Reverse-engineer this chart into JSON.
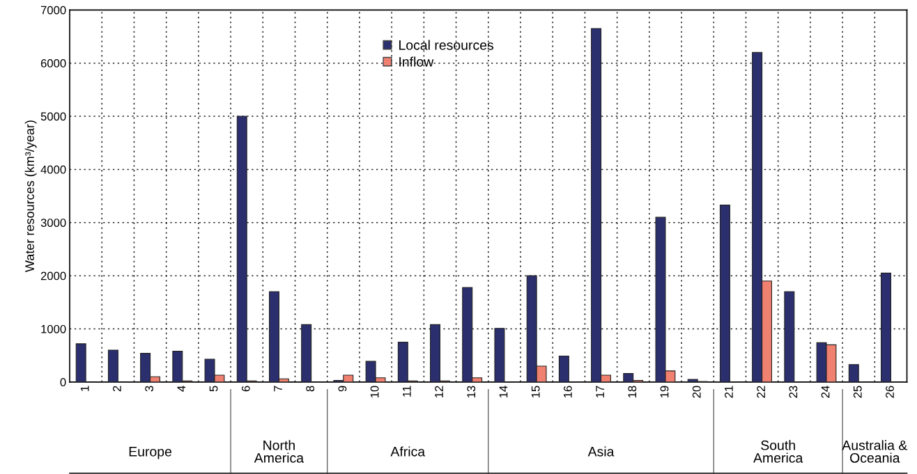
{
  "chart_data": {
    "type": "bar",
    "ylabel": "Water resources (km³/year)",
    "categories": [
      "1",
      "2",
      "3",
      "4",
      "5",
      "6",
      "7",
      "8",
      "9",
      "10",
      "11",
      "12",
      "13",
      "14",
      "15",
      "16",
      "17",
      "18",
      "19",
      "20",
      "21",
      "22",
      "23",
      "24",
      "25",
      "26"
    ],
    "series": [
      {
        "name": "Local resources",
        "color": "#2b2f6e",
        "values": [
          720,
          600,
          540,
          580,
          430,
          5000,
          1700,
          1080,
          30,
          390,
          750,
          1080,
          1780,
          1010,
          2000,
          490,
          6650,
          160,
          3100,
          50,
          3330,
          6200,
          1700,
          740,
          330,
          2050
        ]
      },
      {
        "name": "Inflow",
        "color": "#f08070",
        "values": [
          null,
          null,
          100,
          20,
          130,
          20,
          60,
          null,
          130,
          80,
          20,
          20,
          80,
          null,
          300,
          null,
          130,
          30,
          210,
          10,
          null,
          1900,
          null,
          700,
          null,
          null
        ]
      }
    ],
    "ylim": [
      0,
      7000
    ],
    "yticks": [
      0,
      1000,
      2000,
      3000,
      4000,
      5000,
      6000,
      7000
    ],
    "grid": true,
    "legend": "top center",
    "annotations": [
      "Europe",
      "North\nAmerica",
      "Africa",
      "Asia",
      "South\nAmerica",
      "Australia &\nOceania"
    ]
  }
}
